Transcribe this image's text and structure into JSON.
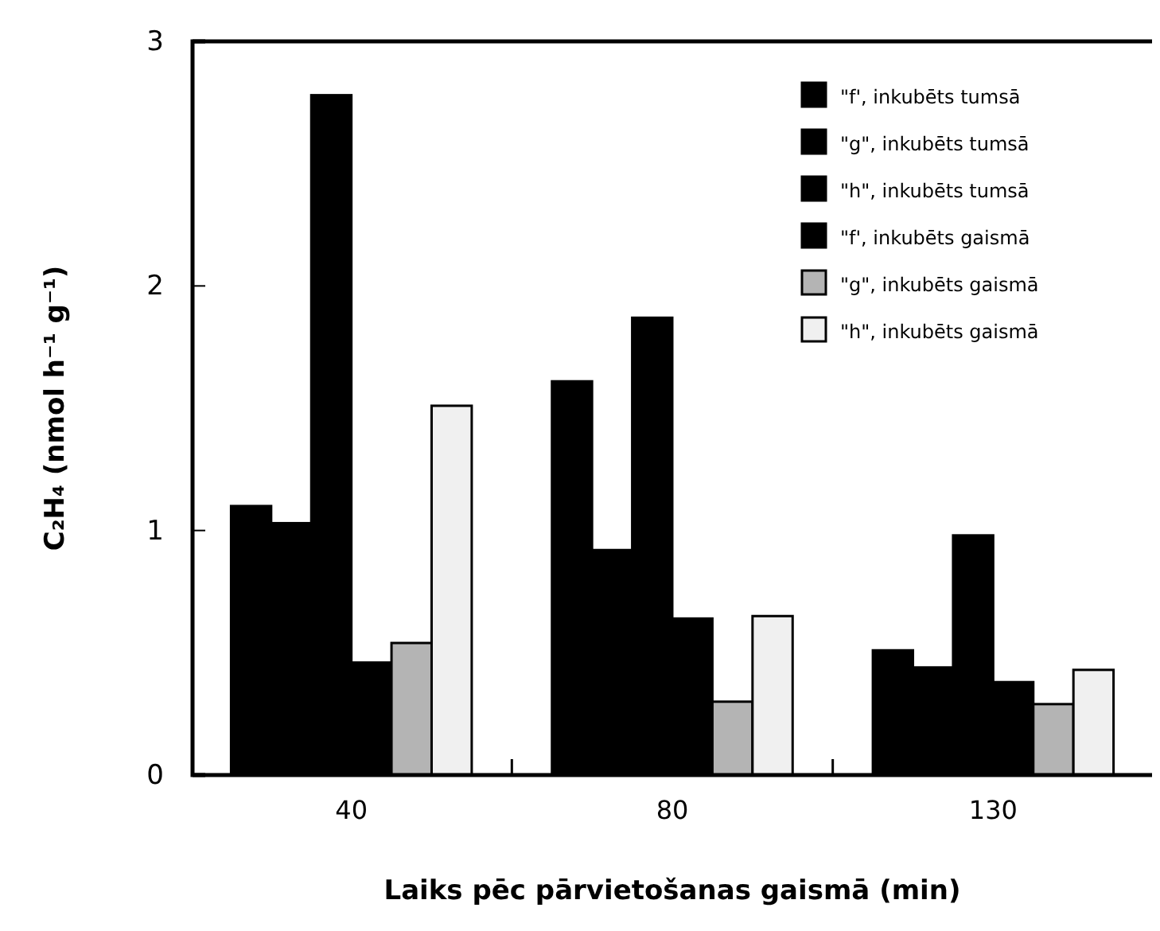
{
  "chart_data": {
    "type": "bar",
    "xlabel": "Laiks pēc pārvietošanas gaismā (min)",
    "ylabel": "C₂H₄ (nmol h⁻¹ g⁻¹)",
    "categories": [
      "40",
      "80",
      "130"
    ],
    "series": [
      {
        "name": "\"f', inkubēts tumsā",
        "color": "#000000",
        "values": [
          1.1,
          1.61,
          0.51
        ]
      },
      {
        "name": "\"g\", inkubēts tumsā",
        "color": "#000000",
        "values": [
          1.03,
          0.92,
          0.44
        ]
      },
      {
        "name": "\"h\", inkubēts tumsā",
        "color": "#000000",
        "values": [
          2.78,
          1.87,
          0.98
        ]
      },
      {
        "name": "\"f', inkubēts gaismā",
        "color": "#000000",
        "values": [
          0.46,
          0.64,
          0.38
        ]
      },
      {
        "name": "\"g\", inkubēts gaismā",
        "color": "#b4b4b4",
        "values": [
          0.54,
          0.3,
          0.29
        ]
      },
      {
        "name": "\"h\", inkubēts gaismā",
        "color": "#f0f0f0",
        "values": [
          1.51,
          0.65,
          0.43
        ]
      }
    ],
    "ylim": [
      0,
      3
    ],
    "yticks": [
      0,
      1,
      2,
      3
    ],
    "grid": false,
    "legend": "top right"
  }
}
